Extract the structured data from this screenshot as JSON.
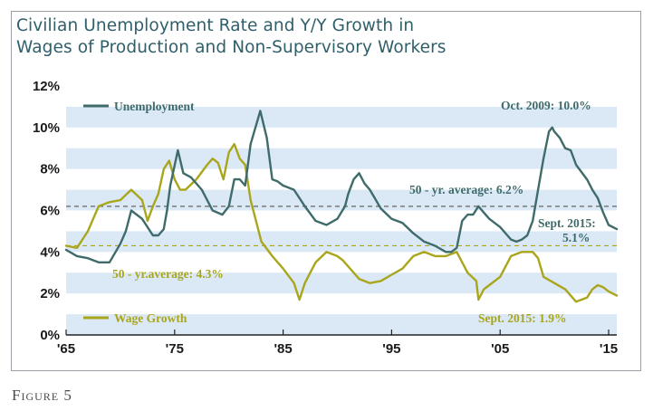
{
  "caption": "Figure 5",
  "chart_data": {
    "type": "line",
    "title_line1": "Civilian Unemployment Rate and Y/Y Growth in",
    "title_line2": "Wages of Production and Non-Supervisory Workers",
    "x_tick_labels": [
      "'65",
      "'75",
      "'85",
      "'95",
      "'05",
      "'15"
    ],
    "x_ticks": [
      1965,
      1975,
      1985,
      1995,
      2005,
      2015
    ],
    "y_tick_labels": [
      "0%",
      "2%",
      "4%",
      "6%",
      "8%",
      "10%",
      "12%"
    ],
    "y_ticks": [
      0,
      2,
      4,
      6,
      8,
      10,
      12
    ],
    "xlim": [
      1965,
      2015.75
    ],
    "ylim": [
      0,
      12
    ],
    "grid": "horizontal bands",
    "colors": {
      "unemployment": "#3f6b6a",
      "wage": "#a9a61c",
      "band": "#dbe9f6",
      "avg_line": "#555555"
    },
    "series": [
      {
        "name": "Unemployment",
        "x": [
          1965,
          1966,
          1967,
          1968,
          1969,
          1970,
          1970.5,
          1971,
          1972,
          1973,
          1973.5,
          1974,
          1974.3,
          1974.6,
          1975.3,
          1975.8,
          1976.5,
          1977.5,
          1978.5,
          1979.4,
          1980,
          1980.5,
          1981,
          1981.5,
          1982,
          1982.9,
          1983.5,
          1984,
          1984.5,
          1985,
          1985.5,
          1986,
          1987,
          1988,
          1988.5,
          1989,
          1990,
          1990.7,
          1991,
          1991.5,
          1992,
          1992.5,
          1993,
          1994,
          1995,
          1996,
          1997,
          1998,
          1999,
          2000,
          2000.5,
          2001,
          2001.5,
          2002,
          2002.5,
          2003,
          2003.5,
          2004,
          2005,
          2006,
          2006.5,
          2007,
          2007.5,
          2008,
          2008.5,
          2009,
          2009.5,
          2009.8,
          2010,
          2010.5,
          2011,
          2011.5,
          2012,
          2013,
          2013.5,
          2014,
          2014.5,
          2015,
          2015.75
        ],
        "values": [
          4.1,
          3.8,
          3.7,
          3.5,
          3.5,
          4.4,
          5.0,
          6.0,
          5.6,
          4.8,
          4.8,
          5.1,
          6.0,
          7.2,
          8.9,
          7.8,
          7.6,
          7.0,
          6.0,
          5.8,
          6.2,
          7.5,
          7.5,
          7.2,
          9.2,
          10.8,
          9.5,
          7.5,
          7.4,
          7.2,
          7.1,
          7.0,
          6.2,
          5.5,
          5.4,
          5.3,
          5.6,
          6.2,
          6.8,
          7.5,
          7.8,
          7.3,
          7.0,
          6.1,
          5.6,
          5.4,
          4.9,
          4.5,
          4.3,
          4.0,
          4.0,
          4.2,
          5.5,
          5.8,
          5.8,
          6.2,
          5.9,
          5.6,
          5.2,
          4.6,
          4.5,
          4.6,
          4.8,
          5.5,
          7.0,
          8.5,
          9.8,
          10.0,
          9.8,
          9.5,
          9.0,
          8.9,
          8.2,
          7.5,
          7.0,
          6.6,
          5.9,
          5.3,
          5.1
        ]
      },
      {
        "name": "Wage Growth",
        "x": [
          1965,
          1966,
          1967,
          1968,
          1969,
          1970,
          1971,
          1972,
          1972.5,
          1973,
          1973.5,
          1974,
          1974.5,
          1975,
          1975.5,
          1976,
          1977,
          1978,
          1978.5,
          1979,
          1979.5,
          1980,
          1980.5,
          1981,
          1981.5,
          1982,
          1983,
          1984,
          1985,
          1986,
          1986.5,
          1987,
          1988,
          1989,
          1990,
          1990.5,
          1991,
          1992,
          1993,
          1994,
          1995,
          1996,
          1997,
          1998,
          1999,
          2000,
          2001,
          2002,
          2002.8,
          2003,
          2003.5,
          2004,
          2005,
          2006,
          2007,
          2008,
          2008.5,
          2009,
          2010,
          2011,
          2012,
          2013,
          2013.5,
          2014,
          2014.5,
          2015,
          2015.75
        ],
        "values": [
          4.3,
          4.2,
          5.0,
          6.2,
          6.4,
          6.5,
          7.0,
          6.5,
          5.5,
          6.2,
          6.8,
          8.0,
          8.4,
          7.5,
          7.0,
          7.0,
          7.5,
          8.2,
          8.5,
          8.3,
          7.5,
          8.8,
          9.2,
          8.5,
          8.2,
          6.5,
          4.5,
          3.8,
          3.2,
          2.5,
          1.7,
          2.5,
          3.5,
          4.0,
          3.8,
          3.6,
          3.3,
          2.7,
          2.5,
          2.6,
          2.9,
          3.2,
          3.8,
          4.0,
          3.8,
          3.8,
          4.0,
          3.0,
          2.6,
          1.7,
          2.2,
          2.4,
          2.8,
          3.8,
          4.0,
          4.0,
          3.7,
          2.8,
          2.5,
          2.2,
          1.6,
          1.8,
          2.2,
          2.4,
          2.3,
          2.1,
          1.9
        ]
      }
    ],
    "averages": [
      {
        "label": "50 - yr. average: 6.2%",
        "value": 6.2
      },
      {
        "label": "50 - yr.average: 4.3%",
        "value": 4.3
      }
    ],
    "annotations": {
      "legend_unemployment": "Unemployment",
      "legend_wage": "Wage Growth",
      "peak_label": "Oct. 2009: 10.0%",
      "unemp_end_label_1": "Sept. 2015:",
      "unemp_end_label_2": "5.1%",
      "wage_end_label": "Sept. 2015: 1.9%"
    }
  }
}
